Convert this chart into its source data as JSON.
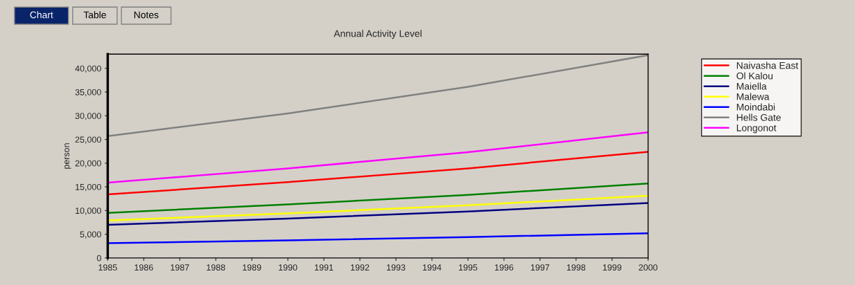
{
  "chart_data": {
    "type": "line",
    "title": "Annual Activity Level",
    "ylabel": "person",
    "annotations": [
      "Chart",
      "Table",
      "Notes"
    ],
    "x": [
      1985,
      1990,
      1995,
      2000
    ],
    "series": [
      {
        "name": "Naivasha East",
        "color": "#ff0000",
        "values": [
          13400,
          16000,
          18900,
          22400
        ]
      },
      {
        "name": "Ol Kalou",
        "color": "#008000",
        "values": [
          9500,
          11300,
          13300,
          15700
        ]
      },
      {
        "name": "Maiella",
        "color": "#000080",
        "values": [
          7000,
          8300,
          9800,
          11600
        ]
      },
      {
        "name": "Malewa",
        "color": "#ffff00",
        "values": [
          7900,
          9400,
          11100,
          13100
        ]
      },
      {
        "name": "Moindabi",
        "color": "#0000ff",
        "values": [
          3100,
          3700,
          4400,
          5200
        ]
      },
      {
        "name": "Hells Gate",
        "color": "#808080",
        "values": [
          25700,
          30500,
          36100,
          42800
        ]
      },
      {
        "name": "Longonot",
        "color": "#ff00ff",
        "values": [
          15900,
          18900,
          22300,
          26500
        ]
      }
    ],
    "xlim": [
      1985,
      2000
    ],
    "xticks": [
      1985,
      1986,
      1987,
      1988,
      1989,
      1990,
      1991,
      1992,
      1993,
      1994,
      1995,
      1996,
      1997,
      1998,
      1999,
      2000
    ],
    "ylim": [
      0,
      43000
    ],
    "yticks": [
      0,
      {
        "value": 5000,
        "label": "5,000"
      },
      {
        "value": 10000,
        "label": "10,000"
      },
      {
        "value": 15000,
        "label": "15,000"
      },
      {
        "value": 20000,
        "label": "20,000"
      },
      {
        "value": 25000,
        "label": "25,000"
      },
      {
        "value": 30000,
        "label": "30,000"
      },
      {
        "value": 35000,
        "label": "35,000"
      },
      {
        "value": 40000,
        "label": "40,000"
      }
    ],
    "grid": false,
    "legend": "right",
    "marker": "none",
    "line_style": "solid"
  }
}
